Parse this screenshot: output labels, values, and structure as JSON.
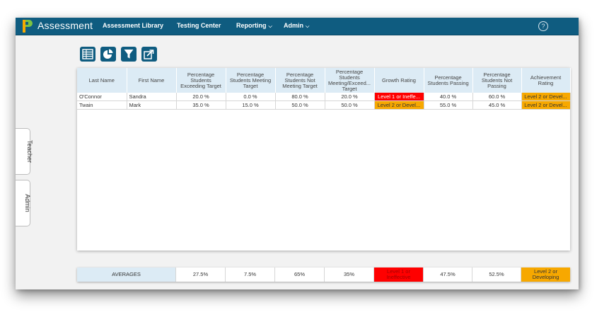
{
  "app": {
    "title": "Assessment",
    "brand_color": "#0f5c80"
  },
  "nav": {
    "items": [
      {
        "label": "Assessment Library",
        "dropdown": false
      },
      {
        "label": "Testing Center",
        "dropdown": false
      },
      {
        "label": "Reporting",
        "dropdown": true
      },
      {
        "label": "Admin",
        "dropdown": true
      }
    ],
    "help_icon": "help-circle-icon"
  },
  "toolbar": {
    "buttons": [
      "grid-view-icon",
      "pie-chart-icon",
      "filter-icon",
      "export-icon"
    ]
  },
  "side_tabs": [
    "Teacher",
    "Admin"
  ],
  "table": {
    "columns": [
      "Last Name",
      "First Name",
      "Percentage Students Exceeding Target",
      "Percentage Students Meeting Target",
      "Percentage Students Not Meeting Target",
      "Percentage Students Meeting/Exceed... Target",
      "Growth Rating",
      "Percentage Students Passing",
      "Percentage Students Not Passing",
      "Achievement Rating"
    ],
    "rows": [
      [
        "O'Connor",
        "Sandra",
        "20.0 %",
        "0.0 %",
        "80.0 %",
        "20.0 %",
        "Level 1 or Ineffe...",
        "40.0 %",
        "60.0 %",
        "Level 2 or Devel..."
      ],
      [
        "Twain",
        "Mark",
        "35.0 %",
        "15.0 %",
        "50.0 %",
        "50.0 %",
        "Level 2 or Devel...",
        "55.0 %",
        "45.0 %",
        "Level 2 or Devel..."
      ]
    ],
    "rating_colors": {
      "level1": "#ff0000",
      "level2": "#f7a800"
    }
  },
  "averages": {
    "label": "AVERAGES",
    "values": [
      "27.5%",
      "7.5%",
      "65%",
      "35%",
      "Level 1 or Ineffective",
      "47.5%",
      "52.5%",
      "Level 2 or Developing"
    ]
  }
}
